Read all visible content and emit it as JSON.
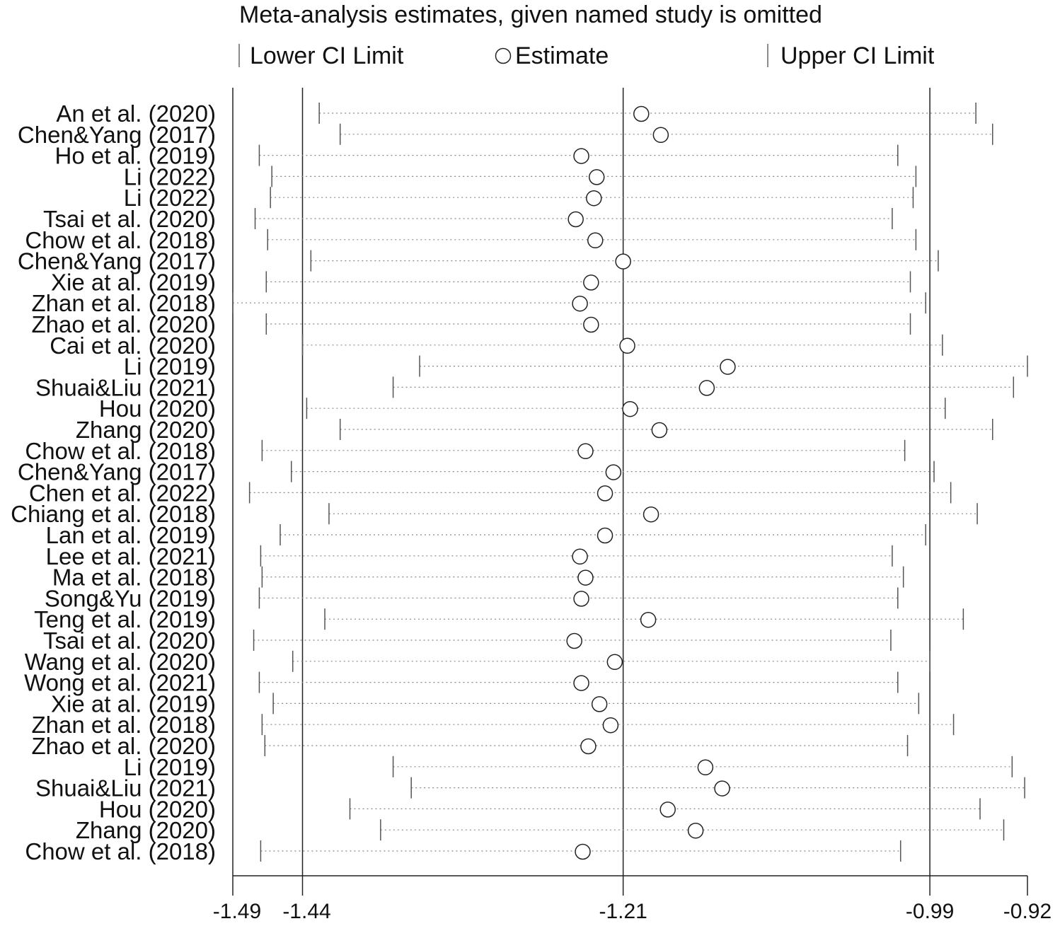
{
  "chart_data": {
    "type": "forest-sensitivity",
    "title": "Meta-analysis estimates, given named study is omitted",
    "legend": {
      "lower": "Lower CI Limit",
      "estimate": "Estimate",
      "upper": "Upper CI Limit"
    },
    "xlim": [
      -1.49,
      -0.92
    ],
    "ticks": [
      {
        "value": -1.49,
        "label": "-1.49"
      },
      {
        "value": -1.44,
        "label": "-1.44"
      },
      {
        "value": -1.21,
        "label": "-1.21"
      },
      {
        "value": -0.99,
        "label": "-0.99"
      },
      {
        "value": -0.92,
        "label": "-0.92"
      }
    ],
    "reference_lines": [
      -1.44,
      -1.21,
      -0.99
    ],
    "studies": [
      {
        "label": "An et al. (2020)",
        "lower": -1.428,
        "estimate": -1.197,
        "upper": -0.957
      },
      {
        "label": "Chen&Yang (2017)",
        "lower": -1.413,
        "estimate": -1.183,
        "upper": -0.945
      },
      {
        "label": "Ho et al. (2019)",
        "lower": -1.471,
        "estimate": -1.24,
        "upper": -1.013
      },
      {
        "label": "Li (2022)",
        "lower": -1.462,
        "estimate": -1.229,
        "upper": -1.0
      },
      {
        "label": "Li (2022)",
        "lower": -1.463,
        "estimate": -1.231,
        "upper": -1.002
      },
      {
        "label": "Tsai et al. (2020)",
        "lower": -1.474,
        "estimate": -1.244,
        "upper": -1.017
      },
      {
        "label": "Chow et al. (2018)",
        "lower": -1.465,
        "estimate": -1.23,
        "upper": -1.0
      },
      {
        "label": "Chen&Yang (2017)",
        "lower": -1.434,
        "estimate": -1.21,
        "upper": -0.984
      },
      {
        "label": "Xie at al. (2019)",
        "lower": -1.466,
        "estimate": -1.233,
        "upper": -1.004
      },
      {
        "label": "Zhan et al. (2018)",
        "lower": -1.49,
        "estimate": -1.241,
        "upper": -0.993
      },
      {
        "label": "Zhao et al. (2020)",
        "lower": -1.466,
        "estimate": -1.233,
        "upper": -1.004
      },
      {
        "label": "Cai et al. (2020)",
        "lower": -1.44,
        "estimate": -1.207,
        "upper": -0.981
      },
      {
        "label": "Li (2019)",
        "lower": -1.356,
        "estimate": -1.135,
        "upper": -0.92
      },
      {
        "label": "Shuai&Liu (2021)",
        "lower": -1.375,
        "estimate": -1.15,
        "upper": -0.93
      },
      {
        "label": "Hou (2020)",
        "lower": -1.437,
        "estimate": -1.205,
        "upper": -0.979
      },
      {
        "label": "Zhang (2020)",
        "lower": -1.413,
        "estimate": -1.184,
        "upper": -0.945
      },
      {
        "label": "Chow et al. (2018)",
        "lower": -1.469,
        "estimate": -1.237,
        "upper": -1.008
      },
      {
        "label": "Chen&Yang (2017)",
        "lower": -1.448,
        "estimate": -1.217,
        "upper": -0.987
      },
      {
        "label": "Chen et al. (2022)",
        "lower": -1.478,
        "estimate": -1.223,
        "upper": -0.975
      },
      {
        "label": "Chiang et al. (2018)",
        "lower": -1.421,
        "estimate": -1.19,
        "upper": -0.956
      },
      {
        "label": "Lan et al. (2019)",
        "lower": -1.456,
        "estimate": -1.223,
        "upper": -0.993
      },
      {
        "label": "Lee et al. (2021)",
        "lower": -1.47,
        "estimate": -1.241,
        "upper": -1.017
      },
      {
        "label": "Ma et al. (2018)",
        "lower": -1.469,
        "estimate": -1.237,
        "upper": -1.009
      },
      {
        "label": "Song&Yu (2019)",
        "lower": -1.471,
        "estimate": -1.24,
        "upper": -1.013
      },
      {
        "label": "Teng et al. (2019)",
        "lower": -1.424,
        "estimate": -1.192,
        "upper": -0.966
      },
      {
        "label": "Tsai et al. (2020)",
        "lower": -1.475,
        "estimate": -1.245,
        "upper": -1.018
      },
      {
        "label": "Wang et al. (2020)",
        "lower": -1.447,
        "estimate": -1.216,
        "upper": -0.99
      },
      {
        "label": "Wong et al. (2021)",
        "lower": -1.471,
        "estimate": -1.24,
        "upper": -1.013
      },
      {
        "label": "Xie at al. (2019)",
        "lower": -1.461,
        "estimate": -1.227,
        "upper": -0.998
      },
      {
        "label": "Zhan et al. (2018)",
        "lower": -1.469,
        "estimate": -1.219,
        "upper": -0.973
      },
      {
        "label": "Zhao et al. (2020)",
        "lower": -1.467,
        "estimate": -1.235,
        "upper": -1.006
      },
      {
        "label": "Li (2019)",
        "lower": -1.375,
        "estimate": -1.151,
        "upper": -0.931
      },
      {
        "label": "Shuai&Liu (2021)",
        "lower": -1.362,
        "estimate": -1.139,
        "upper": -0.922
      },
      {
        "label": "Hou (2020)",
        "lower": -1.406,
        "estimate": -1.178,
        "upper": -0.954
      },
      {
        "label": "Zhang (2020)",
        "lower": -1.384,
        "estimate": -1.158,
        "upper": -0.937
      },
      {
        "label": "Chow et al. (2018)",
        "lower": -1.47,
        "estimate": -1.239,
        "upper": -1.011
      }
    ]
  }
}
